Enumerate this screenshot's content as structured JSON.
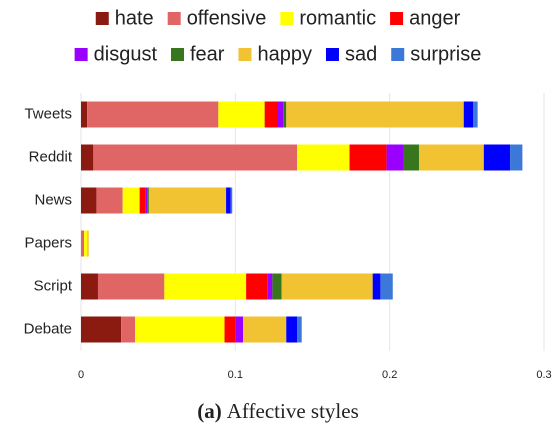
{
  "chart_data": {
    "type": "stacked-barh",
    "categories": [
      "Tweets",
      "Reddit",
      "News",
      "Papers",
      "Script",
      "Debate"
    ],
    "series": [
      {
        "name": "hate",
        "color": "#8b1a10",
        "values": [
          0.004,
          0.008,
          0.01,
          0,
          0.011,
          0.026
        ]
      },
      {
        "name": "offensive",
        "color": "#e06666",
        "values": [
          0.085,
          0.132,
          0.017,
          0.002,
          0.043,
          0.009
        ]
      },
      {
        "name": "romantic",
        "color": "#ffff00",
        "values": [
          0.03,
          0.034,
          0.011,
          0.002,
          0.053,
          0.058
        ]
      },
      {
        "name": "anger",
        "color": "#ff0000",
        "values": [
          0.008,
          0.024,
          0.004,
          0,
          0.014,
          0.007
        ]
      },
      {
        "name": "disgust",
        "color": "#9900ff",
        "values": [
          0.004,
          0.011,
          0.001,
          0,
          0.003,
          0.005
        ]
      },
      {
        "name": "fear",
        "color": "#38761d",
        "values": [
          0.002,
          0.01,
          0.001,
          0,
          0.006,
          0
        ]
      },
      {
        "name": "happy",
        "color": "#f1c232",
        "values": [
          0.115,
          0.042,
          0.05,
          0.001,
          0.059,
          0.028
        ]
      },
      {
        "name": "sad",
        "color": "#0000ff",
        "values": [
          0.006,
          0.017,
          0.003,
          0,
          0.005,
          0.007
        ]
      },
      {
        "name": "surprise",
        "color": "#3c78d8",
        "values": [
          0.003,
          0.008,
          0.001,
          0,
          0.008,
          0.003
        ]
      }
    ],
    "xlim": [
      0,
      0.3
    ],
    "xticks": [
      0,
      0.1,
      0.2,
      0.3
    ],
    "grid": true,
    "legend": "top",
    "caption": {
      "label": "(a)",
      "text": "Affective styles"
    }
  }
}
